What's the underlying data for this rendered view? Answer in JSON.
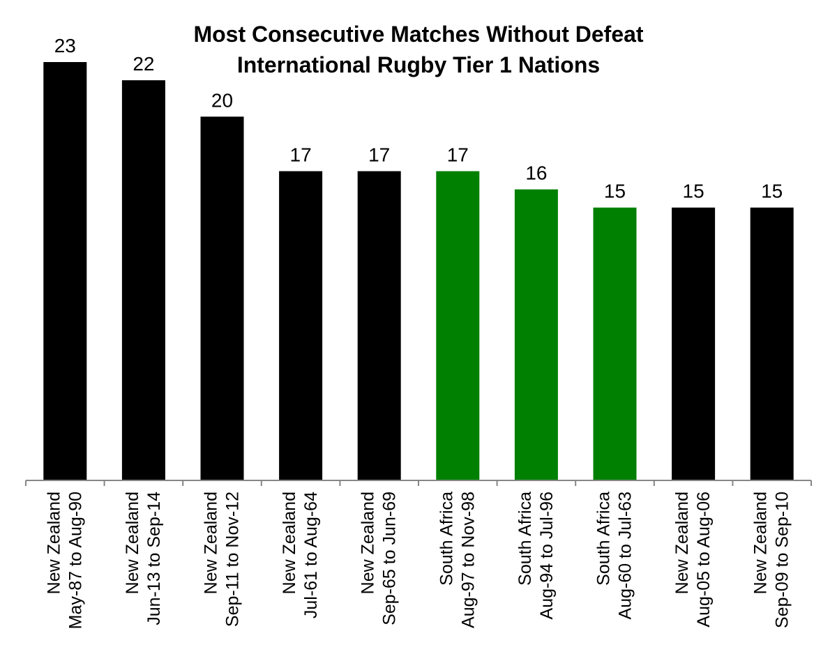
{
  "chart_data": {
    "type": "bar",
    "title": [
      "Most Consecutive Matches Without Defeat",
      "International Rugby Tier 1 Nations"
    ],
    "xlabel": "",
    "ylabel": "",
    "ylim": [
      0,
      23
    ],
    "grid": false,
    "legend": "none",
    "categories": [
      [
        "New Zealand",
        "May-87 to Aug-90"
      ],
      [
        "New Zealand",
        "Jun-13 to Sep-14"
      ],
      [
        "New Zealand",
        "Sep-11 to Nov-12"
      ],
      [
        "New Zealand",
        "Jul-61 to Aug-64"
      ],
      [
        "New Zealand",
        "Sep-65 to Jun-69"
      ],
      [
        "South Africa",
        "Aug-97 to Nov-98"
      ],
      [
        "South Africa",
        "Aug-94 to Jul-96"
      ],
      [
        "South Africa",
        "Aug-60 to Jul-63"
      ],
      [
        "New Zealand",
        "Aug-05 to Aug-06"
      ],
      [
        "New Zealand",
        "Sep-09 to Sep-10"
      ]
    ],
    "values": [
      23,
      22,
      20,
      17,
      17,
      17,
      16,
      15,
      15,
      15
    ],
    "colors": [
      "#000000",
      "#000000",
      "#000000",
      "#000000",
      "#000000",
      "#008000",
      "#008000",
      "#008000",
      "#000000",
      "#000000"
    ]
  }
}
